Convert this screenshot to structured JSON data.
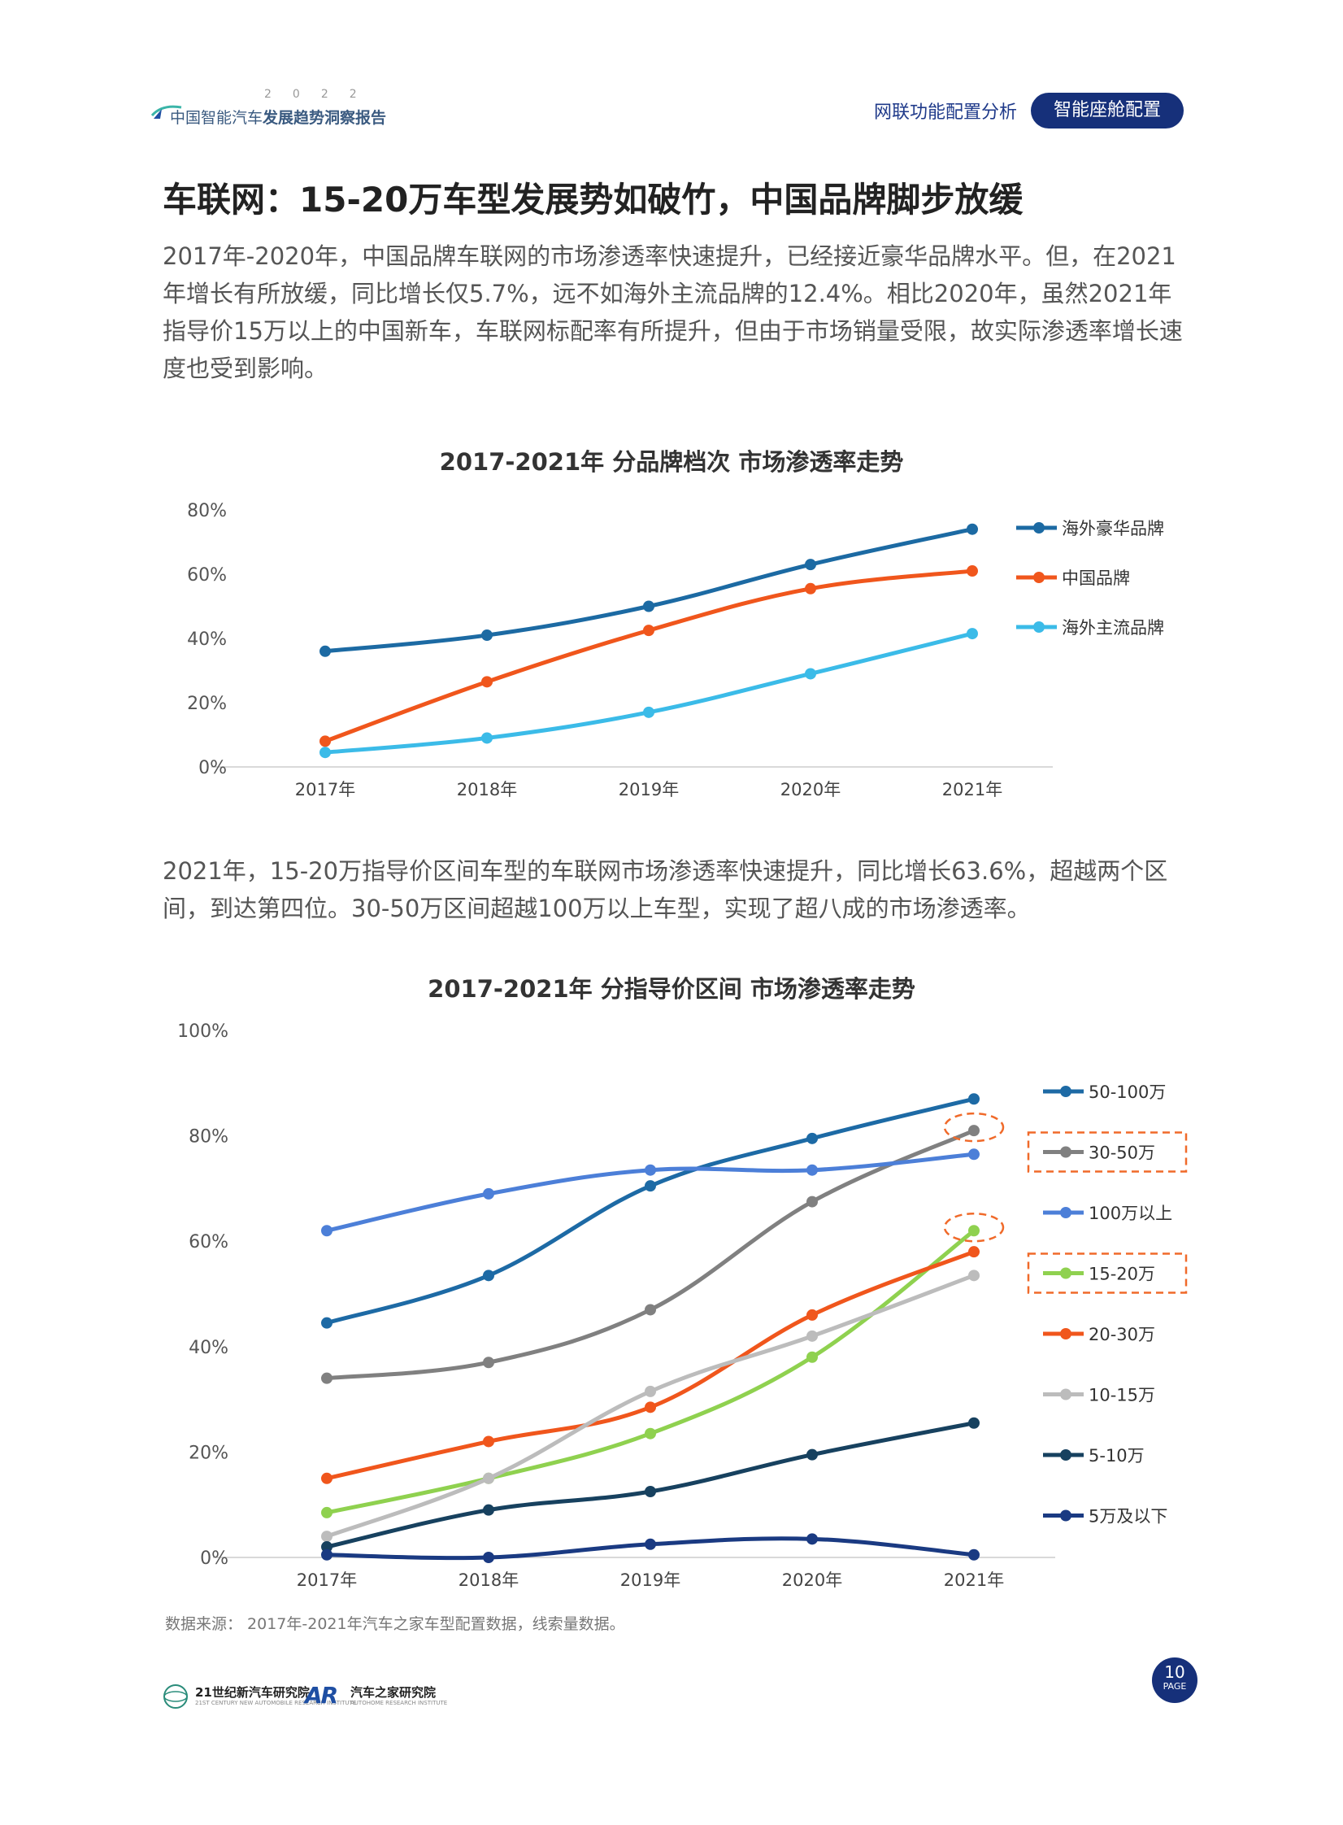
{
  "header": {
    "logo_year": "2022",
    "logo_title_a": "中国智能汽车",
    "logo_title_b": "发展趋势洞察报告",
    "nav_link": "网联功能配置分析",
    "nav_active": "智能座舱配置"
  },
  "heading": "车联网：15-20万车型发展势如破竹，中国品牌脚步放缓",
  "paragraph_1": "2017年-2020年，中国品牌车联网的市场渗透率快速提升，已经接近豪华品牌水平。但，在2021年增长有所放缓，同比增长仅5.7%，远不如海外主流品牌的12.4%。相比2020年，虽然2021年指导价15万以上的中国新车，车联网标配率有所提升，但由于市场销量受限，故实际渗透率增长速度也受到影响。",
  "paragraph_2": "2021年，15-20万指导价区间车型的车联网市场渗透率快速提升，同比增长63.6%，超越两个区间，到达第四位。30-50万区间超越100万以上车型，实现了超八成的市场渗透率。",
  "source_note": "数据来源： 2017年-2021年汽车之家车型配置数据，线索量数据。",
  "footer": {
    "org1_name": "21世纪新汽车研究院",
    "org1_sub": "21ST CENTURY NEW AUTOMOBILE RESEARCH INSTITUTE",
    "org2_name": "汽车之家研究院",
    "org2_sub": "AUTOHOME RESEARCH INSTITUTE",
    "org2_mark": "AR",
    "page_number": "10",
    "page_label": "PAGE"
  },
  "chart_data": [
    {
      "type": "line",
      "title": "2017-2021年 分品牌档次 市场渗透率走势",
      "categories": [
        "2017年",
        "2018年",
        "2019年",
        "2020年",
        "2021年"
      ],
      "ylim": [
        0,
        80
      ],
      "yticks": [
        0,
        20,
        40,
        60,
        80
      ],
      "ytick_labels": [
        "0%",
        "20%",
        "40%",
        "60%",
        "80%"
      ],
      "legend_position": "right",
      "grid": false,
      "series": [
        {
          "name": "海外豪华品牌",
          "color": "#1c6aa3",
          "values": [
            36,
            41,
            50,
            63,
            74
          ]
        },
        {
          "name": "中国品牌",
          "color": "#f0561c",
          "values": [
            8,
            26.5,
            42.5,
            55.5,
            61
          ]
        },
        {
          "name": "海外主流品牌",
          "color": "#3bbbe8",
          "values": [
            4.5,
            9,
            17,
            29,
            41.5
          ]
        }
      ]
    },
    {
      "type": "line",
      "title": "2017-2021年 分指导价区间 市场渗透率走势",
      "categories": [
        "2017年",
        "2018年",
        "2019年",
        "2020年",
        "2021年"
      ],
      "ylim": [
        0,
        100
      ],
      "yticks": [
        0,
        20,
        40,
        60,
        80,
        100
      ],
      "ytick_labels": [
        "0%",
        "20%",
        "40%",
        "60%",
        "80%",
        "100%"
      ],
      "legend_position": "right",
      "grid": false,
      "highlighted_series": [
        "30-50万",
        "15-20万"
      ],
      "series": [
        {
          "name": "50-100万",
          "color": "#1d6aa5",
          "values": [
            44.5,
            53.5,
            70.5,
            79.5,
            87
          ]
        },
        {
          "name": "30-50万",
          "color": "#808080",
          "values": [
            34,
            37,
            47,
            67.5,
            81
          ]
        },
        {
          "name": "100万以上",
          "color": "#4c7fd8",
          "values": [
            62,
            69,
            73.5,
            73.5,
            76.5
          ]
        },
        {
          "name": "15-20万",
          "color": "#8fd14f",
          "values": [
            8.5,
            15,
            23.5,
            38,
            62
          ]
        },
        {
          "name": "20-30万",
          "color": "#f0561c",
          "values": [
            15,
            22,
            28.5,
            46,
            58
          ]
        },
        {
          "name": "10-15万",
          "color": "#bcbcbc",
          "values": [
            4,
            15,
            31.5,
            42,
            53.5
          ]
        },
        {
          "name": "5-10万",
          "color": "#17415f",
          "values": [
            2,
            9,
            12.5,
            19.5,
            25.5
          ]
        },
        {
          "name": "5万及以下",
          "color": "#1a3a82",
          "values": [
            0.5,
            0,
            2.5,
            3.5,
            0.5
          ]
        }
      ]
    }
  ]
}
